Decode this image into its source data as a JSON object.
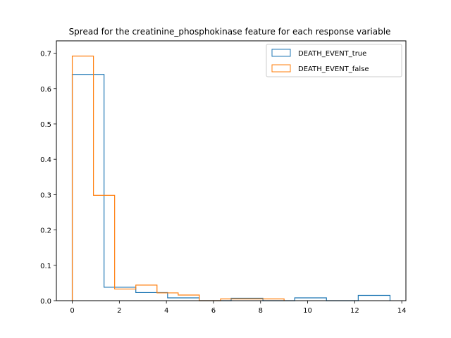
{
  "chart_data": {
    "type": "histogram-step",
    "title": "Spread for the creatinine_phosphokinase feature for each response variable",
    "xlabel": "",
    "ylabel": "",
    "xlim": [
      -0.675,
      14.175
    ],
    "ylim": [
      0,
      0.735
    ],
    "xticks": [
      0,
      2,
      4,
      6,
      8,
      10,
      12,
      14
    ],
    "yticks": [
      0.0,
      0.1,
      0.2,
      0.3,
      0.4,
      0.5,
      0.6,
      0.7
    ],
    "grid": false,
    "legend_position": "top-right",
    "series": [
      {
        "name": "DEATH_EVENT_true",
        "color": "#1f77b4",
        "bin_edges": [
          0.0,
          1.35,
          2.7,
          4.05,
          5.4,
          6.75,
          8.1,
          9.45,
          10.8,
          12.15,
          13.5
        ],
        "values": [
          0.64,
          0.038,
          0.023,
          0.008,
          0.0,
          0.007,
          0.0,
          0.008,
          0.0,
          0.015
        ]
      },
      {
        "name": "DEATH_EVENT_false",
        "color": "#ff7f0e",
        "bin_edges": [
          0.0,
          0.9,
          1.8,
          2.7,
          3.6,
          4.5,
          5.4,
          6.3,
          7.2,
          8.1,
          9.0
        ],
        "values": [
          0.692,
          0.298,
          0.033,
          0.044,
          0.022,
          0.016,
          0.0,
          0.005,
          0.005,
          0.005
        ]
      }
    ]
  }
}
